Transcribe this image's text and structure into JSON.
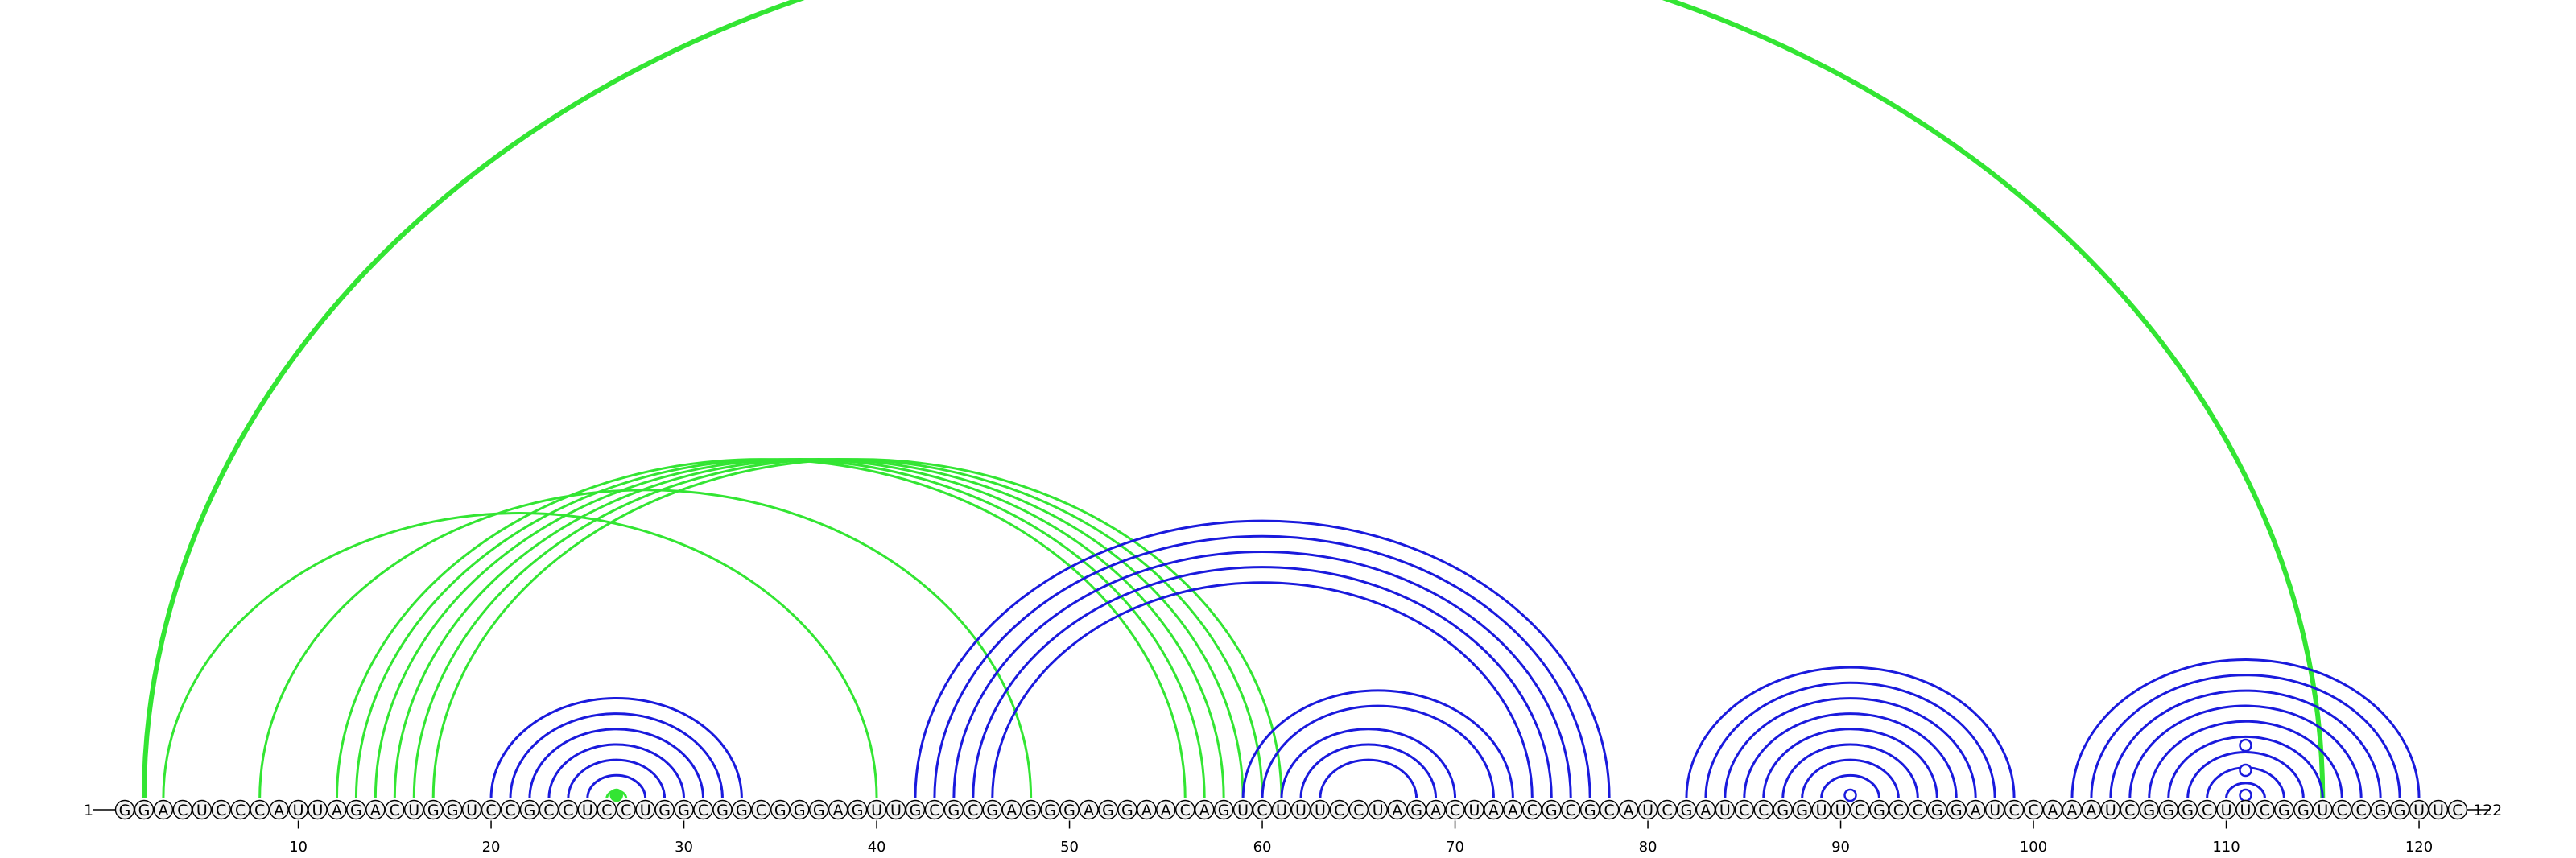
{
  "sequence": "GGACUCCCAUUAGACUGGUCCGCCUCCUGGCGGCGGGAGUUGCGCGAGGGAGGAACAGUCUUUCCUAGACUAACGCGCAUCGAUCCGGUUCGCCGGAUCCAAAUCGGGCUUCGGUCCGGUUC",
  "start_label": "1",
  "end_label": "122",
  "ticks": [
    10,
    20,
    30,
    40,
    50,
    60,
    70,
    80,
    90,
    100,
    110,
    120
  ],
  "colors": {
    "green": "#33e533",
    "blue": "#1a1add",
    "circle_fill": "#f2f2f2",
    "circle_stroke": "#000000"
  },
  "blue_arcs": [
    [
      20,
      33
    ],
    [
      21,
      32
    ],
    [
      22,
      31
    ],
    [
      23,
      30
    ],
    [
      24,
      29
    ],
    [
      25,
      28
    ],
    [
      42,
      78
    ],
    [
      43,
      77
    ],
    [
      44,
      76
    ],
    [
      45,
      75
    ],
    [
      46,
      74
    ],
    [
      59,
      73
    ],
    [
      60,
      72
    ],
    [
      61,
      70
    ],
    [
      62,
      69
    ],
    [
      63,
      68
    ],
    [
      82,
      99
    ],
    [
      83,
      98
    ],
    [
      84,
      97
    ],
    [
      85,
      96
    ],
    [
      86,
      95
    ],
    [
      87,
      94
    ],
    [
      88,
      93
    ],
    [
      89,
      92
    ],
    [
      102,
      120
    ],
    [
      103,
      119
    ],
    [
      104,
      118
    ],
    [
      105,
      117
    ],
    [
      106,
      116
    ],
    [
      107,
      115
    ],
    [
      108,
      114
    ],
    [
      109,
      113
    ],
    [
      110,
      112
    ]
  ],
  "green_arcs": [
    [
      2,
      115
    ],
    [
      3,
      40
    ],
    [
      8,
      48
    ],
    [
      12,
      56
    ],
    [
      13,
      57
    ],
    [
      14,
      58
    ],
    [
      15,
      59
    ],
    [
      16,
      60
    ],
    [
      17,
      61
    ],
    [
      26,
      27
    ]
  ],
  "markers": [
    {
      "position": 26.5,
      "level": 1,
      "style": "filled-green"
    },
    {
      "position": 90.5,
      "level": 1,
      "style": "open-blue"
    },
    {
      "position": 111,
      "level": 1,
      "style": "open-blue"
    },
    {
      "position": 111,
      "level": 2,
      "style": "open-blue"
    },
    {
      "position": 111,
      "level": 3,
      "style": "open-blue"
    }
  ]
}
